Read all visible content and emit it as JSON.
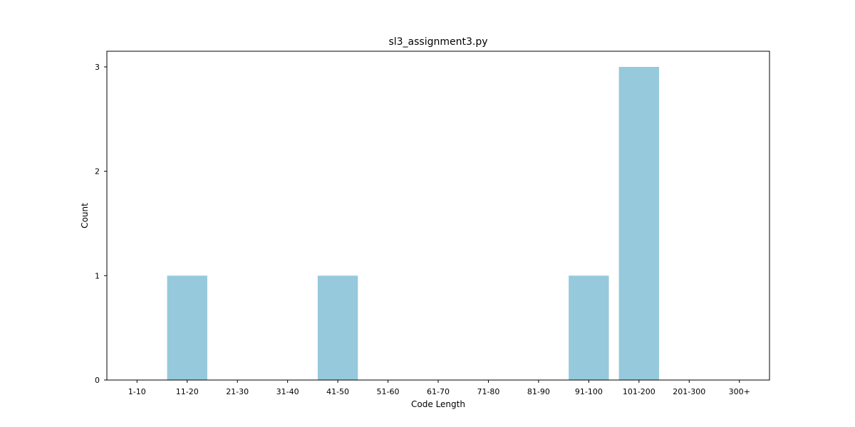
{
  "chart_data": {
    "type": "bar",
    "title": "sl3_assignment3.py",
    "xlabel": "Code Length",
    "ylabel": "Count",
    "categories": [
      "1-10",
      "11-20",
      "21-30",
      "31-40",
      "41-50",
      "51-60",
      "61-70",
      "71-80",
      "81-90",
      "91-100",
      "101-200",
      "201-300",
      "300+"
    ],
    "values": [
      0,
      1,
      0,
      0,
      1,
      0,
      0,
      0,
      0,
      1,
      3,
      0,
      0
    ],
    "yticks": [
      0,
      1,
      2,
      3
    ],
    "ylim": [
      0,
      3.15
    ],
    "bar_color": "#96c9dc",
    "grid": false,
    "legend": "none"
  }
}
